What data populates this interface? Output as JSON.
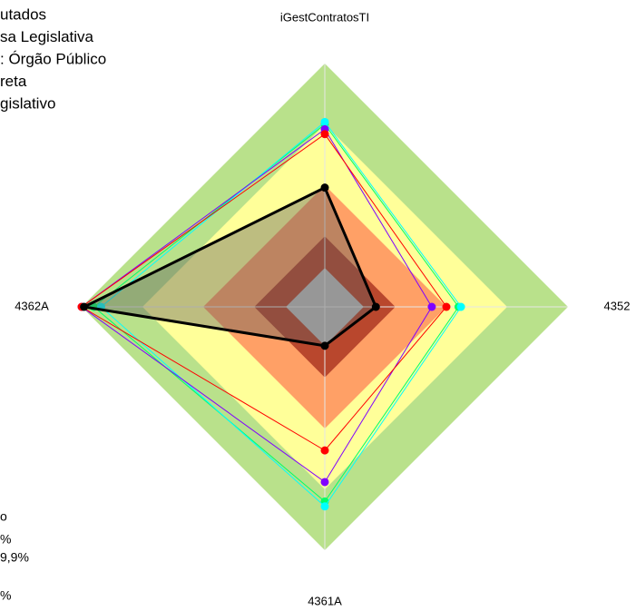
{
  "chart_data": {
    "type": "radar",
    "categories": [
      "iGestContratosTI",
      "4352",
      "4361A",
      "4362A"
    ],
    "rlim": [
      0,
      100
    ],
    "bands": [
      {
        "value": 100,
        "color": "#b9e18b"
      },
      {
        "value": 75,
        "color": "#ffff99"
      },
      {
        "value": 50,
        "color": "#ffa066"
      },
      {
        "value": 29,
        "color": "#b9472d"
      },
      {
        "value": 16,
        "color": "#c0c0c0"
      }
    ],
    "series": [
      {
        "color": "#00ff66",
        "values": [
          75,
          55,
          80,
          95
        ]
      },
      {
        "color": "#00ffff",
        "values": [
          76,
          56,
          82,
          92
        ]
      },
      {
        "color": "#8000ff",
        "values": [
          73,
          44,
          72,
          100
        ]
      },
      {
        "color": "#ff0000",
        "values": [
          71,
          50,
          59,
          100
        ]
      },
      {
        "color": "#000000",
        "values": [
          49,
          21,
          16,
          99
        ],
        "fill": "rgba(90,90,90,0.4)",
        "width": 3
      }
    ],
    "legend_top": [
      "utados",
      "sa Legislativa",
      ": Órgão Público",
      "reta",
      "gislativo"
    ],
    "legend_bottom": [
      "o",
      "%",
      "9,9%",
      "%"
    ]
  }
}
